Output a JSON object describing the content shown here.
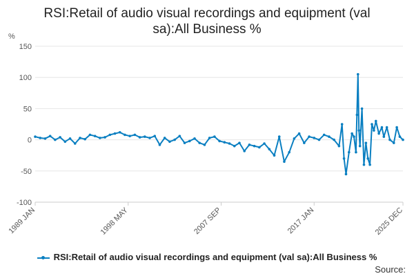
{
  "chart_data": {
    "type": "line",
    "title_lines": [
      "RSI:Retail of audio visual recordings and equipment (val",
      "sa):All Business %"
    ],
    "ylabel": "%",
    "ylim": [
      -100,
      150
    ],
    "yticks": [
      150,
      100,
      50,
      0,
      -50,
      -100
    ],
    "xrange": [
      1989.0,
      2025.917
    ],
    "xticks": [
      {
        "label": "1989 JAN",
        "x": 1989.0
      },
      {
        "label": "1998 MAY",
        "x": 1998.333
      },
      {
        "label": "2007 SEP",
        "x": 2007.667
      },
      {
        "label": "2017 JAN",
        "x": 2017.0
      },
      {
        "label": "2025 DEC",
        "x": 2025.917
      }
    ],
    "grid": true,
    "legend_position": "bottom",
    "series": [
      {
        "name": "RSI:Retail of audio visual recordings and equipment (val sa):All Business %",
        "color": "#0a7fc1",
        "x": [
          1989.0,
          1989.5,
          1990.0,
          1990.5,
          1991.0,
          1991.5,
          1992.0,
          1992.5,
          1993.0,
          1993.5,
          1994.0,
          1994.5,
          1995.0,
          1995.5,
          1996.0,
          1996.5,
          1997.0,
          1997.5,
          1998.0,
          1998.5,
          1999.0,
          1999.5,
          2000.0,
          2000.5,
          2001.0,
          2001.5,
          2002.0,
          2002.5,
          2003.0,
          2003.5,
          2004.0,
          2004.5,
          2005.0,
          2005.5,
          2006.0,
          2006.5,
          2007.0,
          2007.5,
          2008.0,
          2008.5,
          2009.0,
          2009.5,
          2010.0,
          2010.5,
          2011.0,
          2011.5,
          2012.0,
          2012.5,
          2013.0,
          2013.5,
          2014.0,
          2014.5,
          2015.0,
          2015.5,
          2016.0,
          2016.5,
          2017.0,
          2017.5,
          2018.0,
          2018.5,
          2019.0,
          2019.5,
          2019.8,
          2020.0,
          2020.2,
          2020.5,
          2020.8,
          2021.0,
          2021.2,
          2021.3,
          2021.4,
          2021.5,
          2021.6,
          2021.8,
          2022.0,
          2022.2,
          2022.4,
          2022.6,
          2022.8,
          2023.0,
          2023.2,
          2023.5,
          2023.8,
          2024.0,
          2024.3,
          2024.6,
          2025.0,
          2025.3,
          2025.6,
          2025.917
        ],
        "values": [
          5,
          3,
          2,
          6,
          0,
          4,
          -3,
          2,
          -6,
          3,
          1,
          8,
          6,
          3,
          4,
          8,
          10,
          12,
          8,
          6,
          8,
          4,
          5,
          3,
          6,
          -8,
          3,
          -3,
          0,
          6,
          -5,
          -2,
          2,
          -5,
          -8,
          3,
          5,
          -2,
          -4,
          -6,
          -10,
          -5,
          -18,
          -8,
          -10,
          -12,
          -6,
          -15,
          -25,
          5,
          -35,
          -20,
          2,
          10,
          -5,
          5,
          3,
          0,
          8,
          5,
          0,
          -10,
          25,
          -30,
          -55,
          -20,
          10,
          5,
          -20,
          40,
          105,
          15,
          -10,
          50,
          -40,
          -5,
          -30,
          -40,
          25,
          15,
          30,
          10,
          20,
          5,
          20,
          0,
          -5,
          20,
          5,
          0
        ]
      }
    ],
    "source_label": "Source:"
  }
}
